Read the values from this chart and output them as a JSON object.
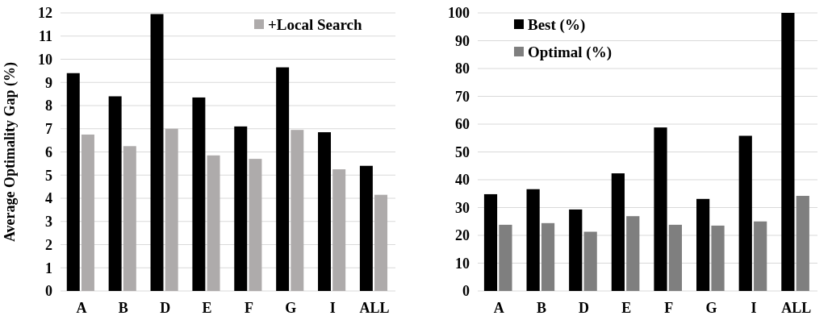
{
  "chart_data": [
    {
      "type": "bar",
      "ylabel": "Average Optimality Gap (%)",
      "categories": [
        "A",
        "B",
        "D",
        "E",
        "F",
        "G",
        "I",
        "ALL"
      ],
      "series": [
        {
          "color": "#000000",
          "values": [
            9.4,
            8.4,
            11.95,
            8.35,
            7.1,
            9.65,
            6.85,
            5.4
          ]
        },
        {
          "name": "+Local Search",
          "color": "#aeabab",
          "values": [
            6.75,
            6.25,
            7.0,
            5.85,
            5.7,
            6.95,
            5.25,
            4.15
          ]
        }
      ],
      "ylim": [
        0,
        12
      ],
      "yticks": [
        0,
        1,
        2,
        3,
        4,
        5,
        6,
        7,
        8,
        9,
        10,
        11,
        12
      ],
      "grid": "y",
      "legend": "top right"
    },
    {
      "type": "bar",
      "categories": [
        "A",
        "B",
        "D",
        "E",
        "F",
        "G",
        "I",
        "ALL"
      ],
      "series": [
        {
          "name": "Best (%)",
          "color": "#000000",
          "values": [
            34.8,
            36.6,
            29.3,
            42.3,
            58.8,
            33.1,
            55.8,
            100
          ]
        },
        {
          "name": "Optimal (%)",
          "color": "#7f7f7f",
          "values": [
            23.8,
            24.4,
            21.3,
            26.9,
            23.8,
            23.5,
            25.0,
            34.2
          ]
        }
      ],
      "ylim": [
        0,
        100
      ],
      "yticks": [
        0,
        10,
        20,
        30,
        40,
        50,
        60,
        70,
        80,
        90,
        100
      ],
      "grid": "y",
      "legend": "top left"
    }
  ]
}
